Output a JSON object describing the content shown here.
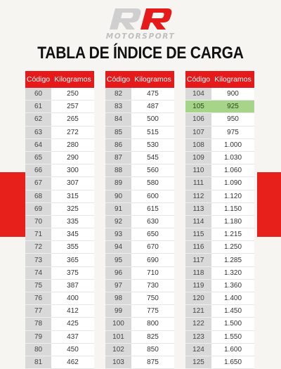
{
  "brand": {
    "wordmark": "MOTORSPORT",
    "logo_letters": "RR",
    "logo_color": "#cfcfcf"
  },
  "title": "TABLA DE ÍNDICE DE CARGA",
  "colors": {
    "header_red": "#e51b1b",
    "band_red": "#e8201c",
    "code_cell": "#d9d9d9",
    "highlight_green": "#a6d58a",
    "background": "#f6f5f1"
  },
  "tables": [
    {
      "headers": {
        "code": "Código",
        "kg": "Kilogramos"
      },
      "rows": [
        {
          "code": "60",
          "kg": "250"
        },
        {
          "code": "61",
          "kg": "257"
        },
        {
          "code": "62",
          "kg": "265"
        },
        {
          "code": "63",
          "kg": "272"
        },
        {
          "code": "64",
          "kg": "280"
        },
        {
          "code": "65",
          "kg": "290"
        },
        {
          "code": "66",
          "kg": "300"
        },
        {
          "code": "67",
          "kg": "307"
        },
        {
          "code": "68",
          "kg": "315"
        },
        {
          "code": "69",
          "kg": "325"
        },
        {
          "code": "70",
          "kg": "335"
        },
        {
          "code": "71",
          "kg": "345"
        },
        {
          "code": "72",
          "kg": "355"
        },
        {
          "code": "73",
          "kg": "365"
        },
        {
          "code": "74",
          "kg": "375"
        },
        {
          "code": "75",
          "kg": "387"
        },
        {
          "code": "76",
          "kg": "400"
        },
        {
          "code": "77",
          "kg": "412"
        },
        {
          "code": "78",
          "kg": "425"
        },
        {
          "code": "79",
          "kg": "437"
        },
        {
          "code": "80",
          "kg": "450"
        },
        {
          "code": "81",
          "kg": "462"
        }
      ]
    },
    {
      "headers": {
        "code": "Código",
        "kg": "Kilogramos"
      },
      "rows": [
        {
          "code": "82",
          "kg": "475"
        },
        {
          "code": "83",
          "kg": "487"
        },
        {
          "code": "84",
          "kg": "500"
        },
        {
          "code": "85",
          "kg": "515"
        },
        {
          "code": "86",
          "kg": "530"
        },
        {
          "code": "87",
          "kg": "545"
        },
        {
          "code": "88",
          "kg": "560"
        },
        {
          "code": "89",
          "kg": "580"
        },
        {
          "code": "90",
          "kg": "600"
        },
        {
          "code": "91",
          "kg": "615"
        },
        {
          "code": "92",
          "kg": "630"
        },
        {
          "code": "93",
          "kg": "650"
        },
        {
          "code": "94",
          "kg": "670"
        },
        {
          "code": "95",
          "kg": "690"
        },
        {
          "code": "96",
          "kg": "710"
        },
        {
          "code": "97",
          "kg": "730"
        },
        {
          "code": "98",
          "kg": "750"
        },
        {
          "code": "99",
          "kg": "775"
        },
        {
          "code": "100",
          "kg": "800"
        },
        {
          "code": "101",
          "kg": "825"
        },
        {
          "code": "102",
          "kg": "850"
        },
        {
          "code": "103",
          "kg": "875"
        }
      ]
    },
    {
      "headers": {
        "code": "Código",
        "kg": "Kilogramos"
      },
      "rows": [
        {
          "code": "104",
          "kg": "900"
        },
        {
          "code": "105",
          "kg": "925",
          "highlight": true
        },
        {
          "code": "106",
          "kg": "950"
        },
        {
          "code": "107",
          "kg": "975"
        },
        {
          "code": "108",
          "kg": "1.000"
        },
        {
          "code": "109",
          "kg": "1.030"
        },
        {
          "code": "110",
          "kg": "1.060"
        },
        {
          "code": "111",
          "kg": "1.090"
        },
        {
          "code": "112",
          "kg": "1.120"
        },
        {
          "code": "113",
          "kg": "1.150"
        },
        {
          "code": "114",
          "kg": "1.180"
        },
        {
          "code": "115",
          "kg": "1.215"
        },
        {
          "code": "116",
          "kg": "1.250"
        },
        {
          "code": "117",
          "kg": "1.285"
        },
        {
          "code": "118",
          "kg": "1.320"
        },
        {
          "code": "119",
          "kg": "1.360"
        },
        {
          "code": "120",
          "kg": "1.400"
        },
        {
          "code": "121",
          "kg": "1.450"
        },
        {
          "code": "122",
          "kg": "1.500"
        },
        {
          "code": "123",
          "kg": "1.550"
        },
        {
          "code": "124",
          "kg": "1.600"
        },
        {
          "code": "125",
          "kg": "1.650"
        }
      ]
    }
  ]
}
